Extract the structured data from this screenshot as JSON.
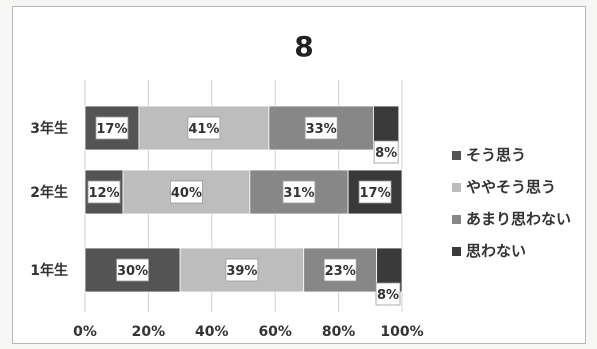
{
  "chart_data": {
    "type": "bar",
    "stacked": true,
    "orientation": "horizontal",
    "percent": true,
    "title": "8",
    "categories": [
      "3年生",
      "2年生",
      "1年生"
    ],
    "series": [
      {
        "name": "そう思う",
        "values": [
          17,
          12,
          30
        ],
        "labels": [
          "17%",
          "12%",
          "30%"
        ],
        "color": "#545454"
      },
      {
        "name": "ややそう思う",
        "values": [
          41,
          40,
          39
        ],
        "labels": [
          "41%",
          "40%",
          "39%"
        ],
        "color": "#bdbdbd"
      },
      {
        "name": "あまり思わない",
        "values": [
          33,
          31,
          23
        ],
        "labels": [
          "33%",
          "31%",
          "23%"
        ],
        "color": "#878787"
      },
      {
        "name": "思わない",
        "values": [
          8,
          17,
          8
        ],
        "labels": [
          "8%",
          "17%",
          "8%"
        ],
        "color": "#3a3a3a"
      }
    ],
    "xlim": [
      0,
      100
    ],
    "xticks": [
      "0%",
      "20%",
      "40%",
      "60%",
      "80%",
      "100%"
    ],
    "legend_position": "right",
    "grid": true
  }
}
